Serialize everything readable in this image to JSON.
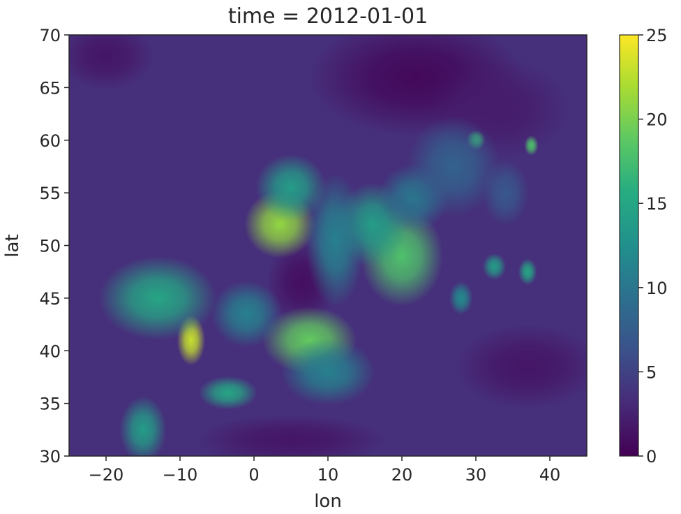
{
  "chart_data": {
    "type": "heatmap",
    "title": "time = 2012-01-01",
    "xlabel": "lon",
    "ylabel": "lat",
    "xlim": [
      -25,
      45
    ],
    "ylim": [
      30,
      70
    ],
    "x_ticks": [
      -20,
      -10,
      0,
      10,
      20,
      30,
      40
    ],
    "x_tick_labels": [
      "−20",
      "−10",
      "0",
      "10",
      "20",
      "30",
      "40"
    ],
    "y_ticks": [
      30,
      35,
      40,
      45,
      50,
      55,
      60,
      65,
      70
    ],
    "y_tick_labels": [
      "30",
      "35",
      "40",
      "45",
      "50",
      "55",
      "60",
      "65",
      "70"
    ],
    "colorbar": {
      "colormap": "viridis",
      "vmin": 0,
      "vmax": 25,
      "ticks": [
        0,
        5,
        10,
        15,
        20,
        25
      ],
      "tick_labels": [
        "0",
        "5",
        "10",
        "15",
        "20",
        "25"
      ]
    },
    "field_description_note_free": true,
    "background_value": 3.5,
    "features": [
      {
        "lon": 3.5,
        "lat": 52.0,
        "value": 21,
        "spread_lon": 3.0,
        "spread_lat": 2.0
      },
      {
        "lon": 5.0,
        "lat": 55.5,
        "value": 14,
        "spread_lon": 3.0,
        "spread_lat": 2.0
      },
      {
        "lon": -8.5,
        "lat": 41.0,
        "value": 23,
        "spread_lon": 1.2,
        "spread_lat": 1.5
      },
      {
        "lon": 7.5,
        "lat": 41.0,
        "value": 19,
        "spread_lon": 4.0,
        "spread_lat": 2.0
      },
      {
        "lon": -13.0,
        "lat": 45.0,
        "value": 15,
        "spread_lon": 5.0,
        "spread_lat": 2.5
      },
      {
        "lon": -15.0,
        "lat": 32.5,
        "value": 14,
        "spread_lon": 2.0,
        "spread_lat": 2.0
      },
      {
        "lon": -3.5,
        "lat": 36.0,
        "value": 15,
        "spread_lon": 2.5,
        "spread_lat": 1.0
      },
      {
        "lon": 20.0,
        "lat": 49.0,
        "value": 18,
        "spread_lon": 3.5,
        "spread_lat": 3.0
      },
      {
        "lon": 16.0,
        "lat": 52.0,
        "value": 14,
        "spread_lon": 3.0,
        "spread_lat": 2.5
      },
      {
        "lon": 11.0,
        "lat": 50.5,
        "value": 11,
        "spread_lon": 2.5,
        "spread_lat": 4.0
      },
      {
        "lon": 30.0,
        "lat": 60.0,
        "value": 17,
        "spread_lon": 0.8,
        "spread_lat": 0.6
      },
      {
        "lon": 37.5,
        "lat": 59.5,
        "value": 18,
        "spread_lon": 0.6,
        "spread_lat": 0.6
      },
      {
        "lon": 32.5,
        "lat": 48.0,
        "value": 14,
        "spread_lon": 1.0,
        "spread_lat": 0.8
      },
      {
        "lon": 37.0,
        "lat": 47.5,
        "value": 15,
        "spread_lon": 0.8,
        "spread_lat": 0.8
      },
      {
        "lon": 21.5,
        "lat": 54.5,
        "value": 10,
        "spread_lon": 3.0,
        "spread_lat": 2.0
      },
      {
        "lon": 28.0,
        "lat": 45.0,
        "value": 12,
        "spread_lon": 1.0,
        "spread_lat": 1.0
      },
      {
        "lon": 10.0,
        "lat": 38.0,
        "value": 11,
        "spread_lon": 4.0,
        "spread_lat": 2.0
      },
      {
        "lon": -1.0,
        "lat": 43.5,
        "value": 11,
        "spread_lon": 3.0,
        "spread_lat": 2.0
      },
      {
        "lon": 34.0,
        "lat": 55.0,
        "value": 7,
        "spread_lon": 2.0,
        "spread_lat": 2.0
      },
      {
        "lon": 27.0,
        "lat": 57.5,
        "value": 8,
        "spread_lon": 4.0,
        "spread_lat": 3.0
      }
    ],
    "low_regions": [
      {
        "lon": 22.0,
        "lat": 66.0,
        "value": 0.5,
        "spread_lon": 9.0,
        "spread_lat": 3.5
      },
      {
        "lon": 6.5,
        "lat": 46.5,
        "value": 1.0,
        "spread_lon": 3.0,
        "spread_lat": 2.5
      },
      {
        "lon": -20.0,
        "lat": 68.0,
        "value": 1.5,
        "spread_lon": 4.0,
        "spread_lat": 2.0
      },
      {
        "lon": 37.0,
        "lat": 38.5,
        "value": 1.5,
        "spread_lon": 6.0,
        "spread_lat": 2.5
      },
      {
        "lon": 5.0,
        "lat": 31.5,
        "value": 1.5,
        "spread_lon": 8.0,
        "spread_lat": 1.5
      },
      {
        "lon": 33.0,
        "lat": 63.0,
        "value": 2.0,
        "spread_lon": 6.0,
        "spread_lat": 3.0
      }
    ]
  }
}
